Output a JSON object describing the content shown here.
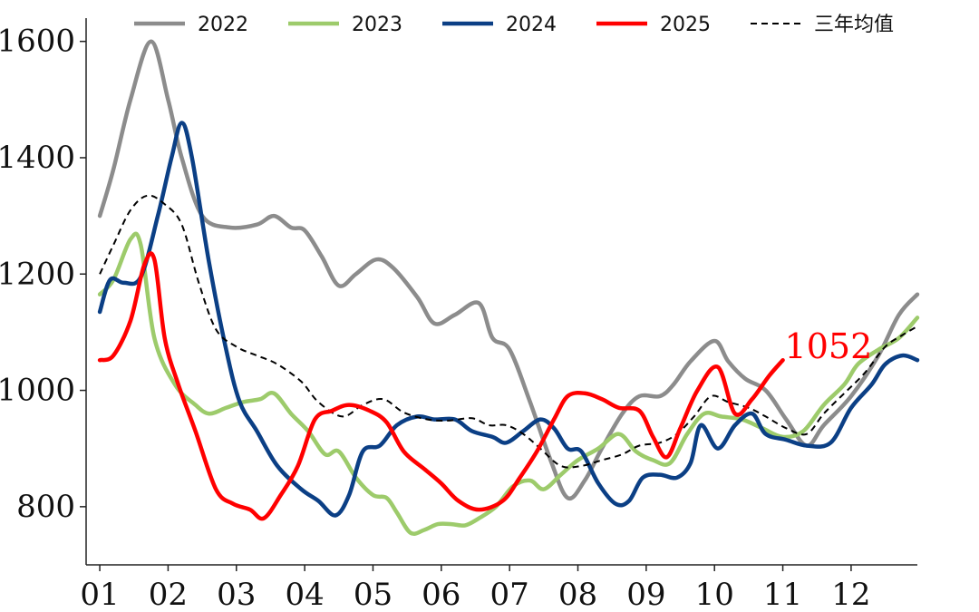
{
  "chart_data": {
    "type": "line",
    "title": "",
    "xlabel": "",
    "ylabel": "",
    "x_domain": [
      0.8,
      12.97
    ],
    "ylim": [
      700,
      1640
    ],
    "x_ticks": [
      {
        "label": "01",
        "pos": 1
      },
      {
        "label": "02",
        "pos": 2
      },
      {
        "label": "03",
        "pos": 3
      },
      {
        "label": "04",
        "pos": 4
      },
      {
        "label": "05",
        "pos": 5
      },
      {
        "label": "06",
        "pos": 6
      },
      {
        "label": "07",
        "pos": 7
      },
      {
        "label": "08",
        "pos": 8
      },
      {
        "label": "09",
        "pos": 9
      },
      {
        "label": "10",
        "pos": 10
      },
      {
        "label": "11",
        "pos": 11
      },
      {
        "label": "12",
        "pos": 12
      }
    ],
    "y_ticks": [
      {
        "label": "800",
        "value": 800
      },
      {
        "label": "1000",
        "value": 1000
      },
      {
        "label": "1200",
        "value": 1200
      },
      {
        "label": "1400",
        "value": 1400
      },
      {
        "label": "1600",
        "value": 1600
      }
    ],
    "legend_position": "top",
    "series": [
      {
        "name": "2022",
        "color": "#8c8c8c",
        "style": "solid",
        "points": [
          [
            1.0,
            1300
          ],
          [
            1.2,
            1380
          ],
          [
            1.45,
            1500
          ],
          [
            1.75,
            1600
          ],
          [
            2.0,
            1500
          ],
          [
            2.2,
            1400
          ],
          [
            2.5,
            1300
          ],
          [
            2.9,
            1280
          ],
          [
            3.3,
            1285
          ],
          [
            3.55,
            1300
          ],
          [
            3.8,
            1280
          ],
          [
            4.0,
            1275
          ],
          [
            4.25,
            1230
          ],
          [
            4.5,
            1180
          ],
          [
            4.75,
            1200
          ],
          [
            5.05,
            1225
          ],
          [
            5.3,
            1210
          ],
          [
            5.65,
            1160
          ],
          [
            5.9,
            1115
          ],
          [
            6.2,
            1130
          ],
          [
            6.55,
            1150
          ],
          [
            6.75,
            1090
          ],
          [
            7.0,
            1070
          ],
          [
            7.3,
            980
          ],
          [
            7.6,
            880
          ],
          [
            7.85,
            815
          ],
          [
            8.1,
            845
          ],
          [
            8.35,
            900
          ],
          [
            8.65,
            960
          ],
          [
            8.9,
            990
          ],
          [
            9.2,
            990
          ],
          [
            9.4,
            1010
          ],
          [
            9.65,
            1050
          ],
          [
            10.0,
            1085
          ],
          [
            10.2,
            1050
          ],
          [
            10.45,
            1020
          ],
          [
            10.75,
            1000
          ],
          [
            11.05,
            950
          ],
          [
            11.35,
            905
          ],
          [
            11.6,
            940
          ],
          [
            12.0,
            990
          ],
          [
            12.4,
            1060
          ],
          [
            12.7,
            1130
          ],
          [
            12.97,
            1165
          ]
        ]
      },
      {
        "name": "2023",
        "color": "#9dcb6b",
        "style": "solid",
        "points": [
          [
            1.0,
            1165
          ],
          [
            1.2,
            1190
          ],
          [
            1.45,
            1260
          ],
          [
            1.6,
            1250
          ],
          [
            1.8,
            1090
          ],
          [
            2.1,
            1010
          ],
          [
            2.4,
            975
          ],
          [
            2.6,
            960
          ],
          [
            2.85,
            970
          ],
          [
            3.1,
            980
          ],
          [
            3.35,
            985
          ],
          [
            3.55,
            995
          ],
          [
            3.8,
            960
          ],
          [
            4.05,
            930
          ],
          [
            4.3,
            890
          ],
          [
            4.5,
            895
          ],
          [
            4.75,
            850
          ],
          [
            5.0,
            820
          ],
          [
            5.2,
            815
          ],
          [
            5.35,
            790
          ],
          [
            5.55,
            755
          ],
          [
            5.75,
            760
          ],
          [
            5.95,
            770
          ],
          [
            6.15,
            770
          ],
          [
            6.35,
            768
          ],
          [
            6.55,
            780
          ],
          [
            6.8,
            800
          ],
          [
            7.05,
            835
          ],
          [
            7.3,
            845
          ],
          [
            7.5,
            830
          ],
          [
            7.75,
            855
          ],
          [
            8.0,
            880
          ],
          [
            8.3,
            900
          ],
          [
            8.6,
            925
          ],
          [
            8.85,
            895
          ],
          [
            9.1,
            880
          ],
          [
            9.35,
            875
          ],
          [
            9.6,
            925
          ],
          [
            9.85,
            960
          ],
          [
            10.1,
            955
          ],
          [
            10.4,
            950
          ],
          [
            10.7,
            935
          ],
          [
            11.0,
            920
          ],
          [
            11.3,
            930
          ],
          [
            11.6,
            975
          ],
          [
            11.9,
            1010
          ],
          [
            12.1,
            1045
          ],
          [
            12.4,
            1070
          ],
          [
            12.7,
            1090
          ],
          [
            12.97,
            1125
          ]
        ]
      },
      {
        "name": "2024",
        "color": "#0b3f85",
        "style": "solid",
        "points": [
          [
            1.0,
            1135
          ],
          [
            1.15,
            1190
          ],
          [
            1.35,
            1185
          ],
          [
            1.6,
            1195
          ],
          [
            1.85,
            1300
          ],
          [
            2.05,
            1400
          ],
          [
            2.2,
            1460
          ],
          [
            2.35,
            1400
          ],
          [
            2.6,
            1220
          ],
          [
            2.85,
            1070
          ],
          [
            3.05,
            980
          ],
          [
            3.3,
            930
          ],
          [
            3.6,
            870
          ],
          [
            3.95,
            830
          ],
          [
            4.2,
            810
          ],
          [
            4.45,
            785
          ],
          [
            4.65,
            820
          ],
          [
            4.85,
            895
          ],
          [
            5.1,
            905
          ],
          [
            5.35,
            940
          ],
          [
            5.65,
            955
          ],
          [
            5.9,
            950
          ],
          [
            6.2,
            950
          ],
          [
            6.45,
            930
          ],
          [
            6.75,
            920
          ],
          [
            6.95,
            910
          ],
          [
            7.2,
            930
          ],
          [
            7.45,
            950
          ],
          [
            7.65,
            935
          ],
          [
            7.85,
            900
          ],
          [
            8.05,
            895
          ],
          [
            8.3,
            840
          ],
          [
            8.55,
            805
          ],
          [
            8.75,
            810
          ],
          [
            8.95,
            850
          ],
          [
            9.2,
            855
          ],
          [
            9.45,
            850
          ],
          [
            9.65,
            875
          ],
          [
            9.8,
            940
          ],
          [
            10.05,
            900
          ],
          [
            10.3,
            940
          ],
          [
            10.55,
            960
          ],
          [
            10.75,
            925
          ],
          [
            11.05,
            915
          ],
          [
            11.35,
            905
          ],
          [
            11.7,
            910
          ],
          [
            12.0,
            970
          ],
          [
            12.3,
            1010
          ],
          [
            12.5,
            1045
          ],
          [
            12.75,
            1060
          ],
          [
            12.97,
            1052
          ]
        ]
      },
      {
        "name": "2025",
        "color": "#ff0000",
        "style": "solid",
        "points": [
          [
            1.0,
            1052
          ],
          [
            1.2,
            1060
          ],
          [
            1.45,
            1120
          ],
          [
            1.65,
            1215
          ],
          [
            1.8,
            1225
          ],
          [
            1.95,
            1090
          ],
          [
            2.15,
            1010
          ],
          [
            2.4,
            930
          ],
          [
            2.7,
            830
          ],
          [
            2.95,
            805
          ],
          [
            3.2,
            795
          ],
          [
            3.4,
            780
          ],
          [
            3.65,
            820
          ],
          [
            3.9,
            870
          ],
          [
            4.15,
            950
          ],
          [
            4.4,
            965
          ],
          [
            4.65,
            975
          ],
          [
            4.95,
            965
          ],
          [
            5.2,
            945
          ],
          [
            5.45,
            895
          ],
          [
            5.75,
            865
          ],
          [
            6.0,
            840
          ],
          [
            6.25,
            810
          ],
          [
            6.55,
            795
          ],
          [
            6.9,
            810
          ],
          [
            7.15,
            850
          ],
          [
            7.4,
            895
          ],
          [
            7.65,
            950
          ],
          [
            7.85,
            990
          ],
          [
            8.1,
            995
          ],
          [
            8.35,
            985
          ],
          [
            8.6,
            970
          ],
          [
            8.9,
            965
          ],
          [
            9.1,
            920
          ],
          [
            9.3,
            885
          ],
          [
            9.5,
            935
          ],
          [
            9.75,
            1000
          ],
          [
            10.05,
            1040
          ],
          [
            10.3,
            960
          ],
          [
            10.55,
            985
          ],
          [
            10.8,
            1025
          ],
          [
            11.0,
            1052
          ]
        ],
        "end_label": "1052"
      },
      {
        "name": "三年均值",
        "color": "#000000",
        "style": "dashed",
        "points": [
          [
            1.0,
            1200
          ],
          [
            1.2,
            1250
          ],
          [
            1.45,
            1310
          ],
          [
            1.7,
            1335
          ],
          [
            1.95,
            1320
          ],
          [
            2.2,
            1285
          ],
          [
            2.45,
            1185
          ],
          [
            2.7,
            1105
          ],
          [
            3.0,
            1075
          ],
          [
            3.3,
            1060
          ],
          [
            3.6,
            1045
          ],
          [
            3.95,
            1015
          ],
          [
            4.2,
            980
          ],
          [
            4.55,
            955
          ],
          [
            4.85,
            975
          ],
          [
            5.15,
            985
          ],
          [
            5.45,
            962
          ],
          [
            5.8,
            950
          ],
          [
            6.1,
            948
          ],
          [
            6.45,
            952
          ],
          [
            6.7,
            940
          ],
          [
            6.95,
            940
          ],
          [
            7.2,
            925
          ],
          [
            7.45,
            900
          ],
          [
            7.75,
            870
          ],
          [
            8.05,
            870
          ],
          [
            8.35,
            880
          ],
          [
            8.65,
            890
          ],
          [
            8.9,
            905
          ],
          [
            9.2,
            910
          ],
          [
            9.45,
            925
          ],
          [
            9.7,
            955
          ],
          [
            9.95,
            990
          ],
          [
            10.2,
            980
          ],
          [
            10.5,
            970
          ],
          [
            10.75,
            955
          ],
          [
            11.05,
            935
          ],
          [
            11.35,
            925
          ],
          [
            11.6,
            960
          ],
          [
            11.9,
            995
          ],
          [
            12.2,
            1030
          ],
          [
            12.5,
            1075
          ],
          [
            12.75,
            1095
          ],
          [
            12.97,
            1110
          ]
        ]
      }
    ]
  }
}
